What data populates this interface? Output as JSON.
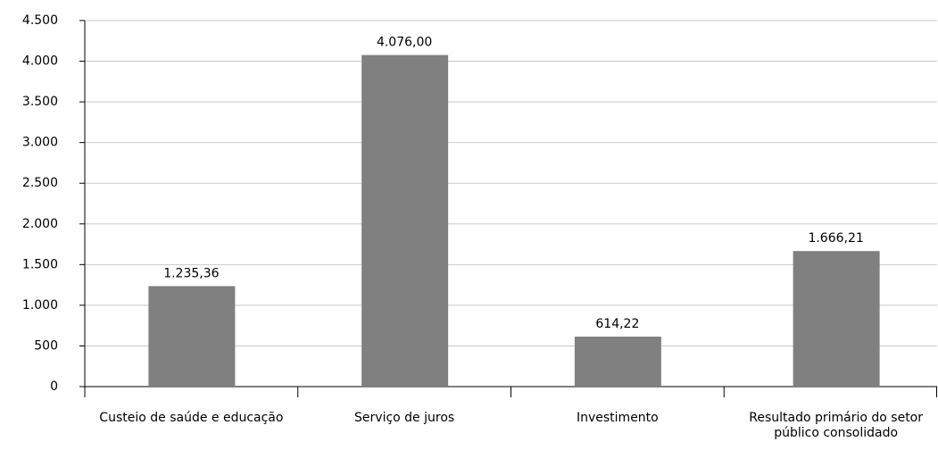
{
  "chart_data": {
    "type": "bar",
    "categories": [
      "Custeio de saúde e educação",
      "Serviço de juros",
      "Investimento",
      "Resultado primário do setor público consolidado"
    ],
    "values": [
      1235.36,
      4076.0,
      614.22,
      1666.21
    ],
    "value_labels": [
      "1.235,36",
      "4.076,00",
      "614,22",
      "1.666,21"
    ],
    "color": "#808080",
    "ylim": [
      0,
      4500
    ],
    "yticks": [
      0,
      500,
      {
        "value": 1000,
        "label": "1.000"
      },
      {
        "value": 1500,
        "label": "1.500"
      },
      {
        "value": 2000,
        "label": "2.000"
      },
      {
        "value": 2500,
        "label": "2.500"
      },
      {
        "value": 3000,
        "label": "3.000"
      },
      {
        "value": 3500,
        "label": "3.500"
      },
      {
        "value": 4000,
        "label": "4.000"
      },
      {
        "value": 4500,
        "label": "4.500"
      }
    ],
    "grid": true
  }
}
